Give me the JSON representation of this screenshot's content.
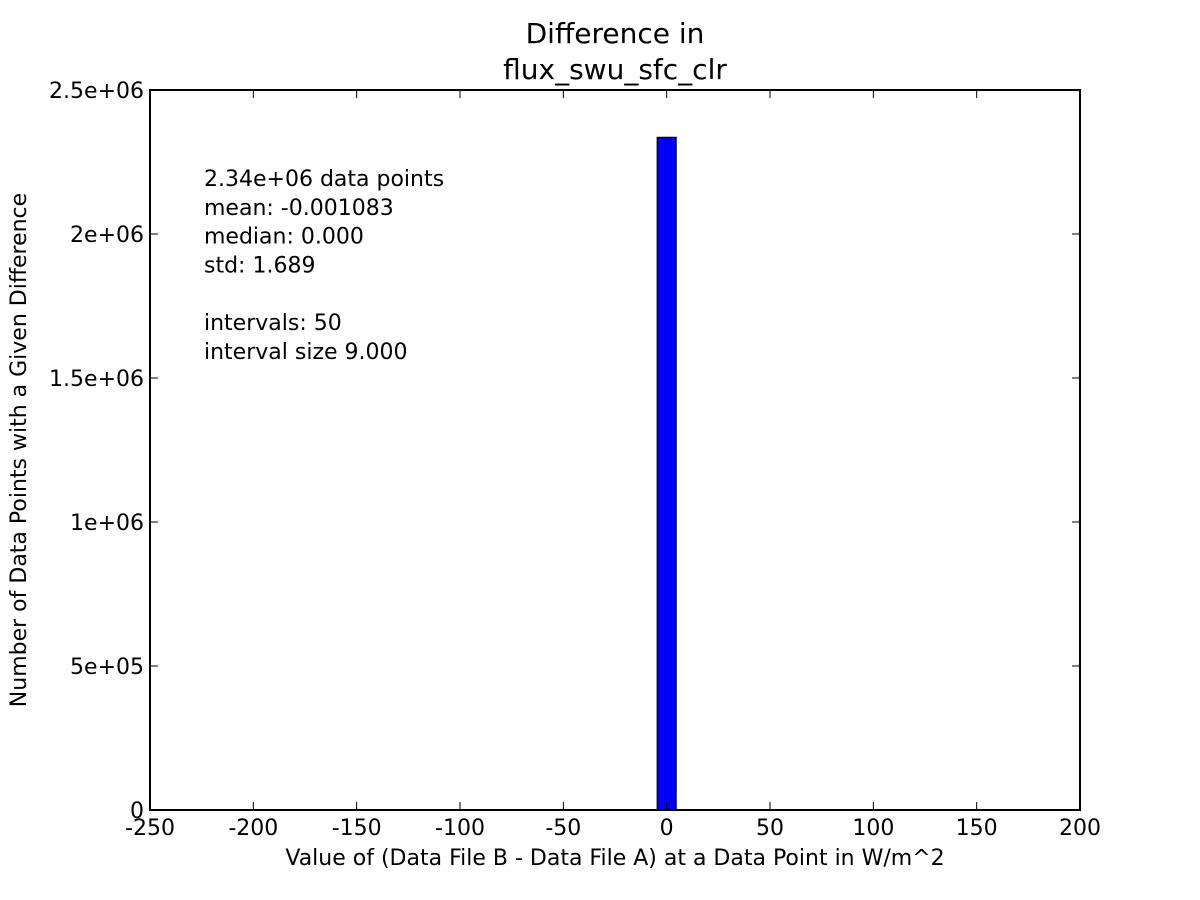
{
  "chart_data": {
    "type": "bar",
    "title_lines": [
      "Difference in",
      "flux_swu_sfc_clr"
    ],
    "xlabel": "Value of (Data File B - Data File A) at a Data Point in W/m^2",
    "ylabel": "Number of Data Points with a Given Difference",
    "xlim": [
      -250,
      200
    ],
    "ylim": [
      0,
      2500000
    ],
    "xticks": [
      -250,
      -200,
      -150,
      -100,
      -50,
      0,
      50,
      100,
      150,
      200
    ],
    "xtick_labels": [
      "-250",
      "-200",
      "-150",
      "-100",
      "-50",
      "0",
      "50",
      "100",
      "150",
      "200"
    ],
    "yticks": [
      0,
      500000,
      1000000,
      1500000,
      2000000,
      2500000
    ],
    "ytick_labels": [
      "0",
      "5e+05",
      "1e+06",
      "1.5e+06",
      "2e+06",
      "2.5e+06"
    ],
    "bars": [
      {
        "x_start": -4.5,
        "x_end": 4.5,
        "value": 2335000
      }
    ],
    "bar_color": "#0000ff",
    "grid": false,
    "annotation_lines": [
      "2.34e+06 data points",
      "mean: -0.001083",
      "median: 0.000",
      "std: 1.689",
      "",
      "intervals: 50",
      "interval size 9.000"
    ]
  }
}
